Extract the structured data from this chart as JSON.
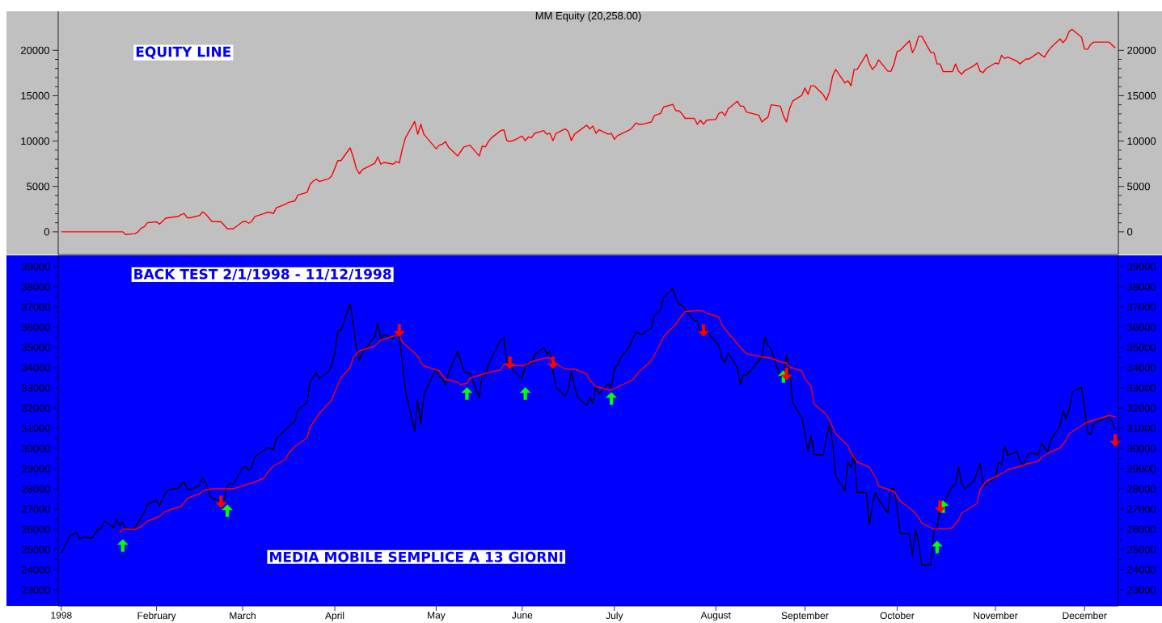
{
  "chart_data": [
    {
      "type": "line",
      "title": "MM Equity (20,258.00)",
      "annotations": [
        "EQUITY LINE"
      ],
      "tick_labels": "y",
      "xlim": [
        "1998-01-01",
        "1998-12-12"
      ],
      "ylim": [
        -2500,
        24300
      ],
      "yticks": [
        0,
        5000,
        10000,
        15000,
        20000
      ],
      "y2lim": [
        -2500,
        24300
      ],
      "y2ticks": [
        0,
        5000,
        10000,
        15000,
        20000
      ],
      "series": [
        {
          "color": "#ff0000",
          "x": [
            "1998-01-02",
            "1998-01-22",
            "1998-01-23",
            "1998-01-26",
            "1998-01-27",
            "1998-01-28",
            "1998-01-29",
            "1998-01-30",
            "1998-02-02",
            "1998-02-03",
            "1998-02-05",
            "1998-02-09",
            "1998-02-10",
            "1998-02-11",
            "1998-02-12",
            "1998-02-13",
            "1998-02-16",
            "1998-02-17",
            "1998-02-18",
            "1998-02-19",
            "1998-02-20",
            "1998-02-23",
            "1998-02-25",
            "1998-02-27",
            "1998-03-02",
            "1998-03-03",
            "1998-03-04",
            "1998-03-05",
            "1998-03-06",
            "1998-03-09",
            "1998-03-10",
            "1998-03-11",
            "1998-03-12",
            "1998-03-13",
            "1998-03-16",
            "1998-03-17",
            "1998-03-19",
            "1998-03-20",
            "1998-03-23",
            "1998-03-24",
            "1998-03-25",
            "1998-03-26",
            "1998-03-27",
            "1998-03-30",
            "1998-03-31",
            "1998-04-02",
            "1998-04-03",
            "1998-04-06",
            "1998-04-07",
            "1998-04-08",
            "1998-04-09",
            "1998-04-10",
            "1998-04-14",
            "1998-04-15",
            "1998-04-16",
            "1998-04-17",
            "1998-04-20",
            "1998-04-21",
            "1998-04-22",
            "1998-04-23",
            "1998-04-24",
            "1998-04-27",
            "1998-04-28",
            "1998-04-29",
            "1998-04-30",
            "1998-05-04",
            "1998-05-05",
            "1998-05-06",
            "1998-05-07",
            "1998-05-08",
            "1998-05-11",
            "1998-05-12",
            "1998-05-13",
            "1998-05-15",
            "1998-05-18",
            "1998-05-19",
            "1998-05-20",
            "1998-05-21",
            "1998-05-22",
            "1998-05-25",
            "1998-05-26",
            "1998-05-27",
            "1998-05-28",
            "1998-05-29",
            "1998-06-01",
            "1998-06-02",
            "1998-06-03",
            "1998-06-04",
            "1998-06-05",
            "1998-06-08",
            "1998-06-09",
            "1998-06-10",
            "1998-06-11",
            "1998-06-12",
            "1998-06-15",
            "1998-06-16",
            "1998-06-17",
            "1998-06-18",
            "1998-06-22",
            "1998-06-23",
            "1998-06-24",
            "1998-06-25",
            "1998-06-26",
            "1998-06-29",
            "1998-06-30",
            "1998-07-01",
            "1998-07-02",
            "1998-07-06",
            "1998-07-07",
            "1998-07-08",
            "1998-07-09",
            "1998-07-10",
            "1998-07-13",
            "1998-07-14",
            "1998-07-16",
            "1998-07-17",
            "1998-07-20",
            "1998-07-21",
            "1998-07-22",
            "1998-07-23",
            "1998-07-24",
            "1998-07-27",
            "1998-07-28",
            "1998-07-29",
            "1998-07-30",
            "1998-07-31",
            "1998-08-03",
            "1998-08-04",
            "1998-08-05",
            "1998-08-06",
            "1998-08-07",
            "1998-08-10",
            "1998-08-11",
            "1998-08-12",
            "1998-08-13",
            "1998-08-17",
            "1998-08-18",
            "1998-08-19",
            "1998-08-20",
            "1998-08-21",
            "1998-08-24",
            "1998-08-25",
            "1998-08-26",
            "1998-08-27",
            "1998-08-28",
            "1998-08-31",
            "1998-09-01",
            "1998-09-02",
            "1998-09-03",
            "1998-09-04",
            "1998-09-07",
            "1998-09-08",
            "1998-09-09",
            "1998-09-10",
            "1998-09-11",
            "1998-09-14",
            "1998-09-15",
            "1998-09-16",
            "1998-09-17",
            "1998-09-18",
            "1998-09-21",
            "1998-09-22",
            "1998-09-23",
            "1998-09-24",
            "1998-09-25",
            "1998-09-28",
            "1998-09-29",
            "1998-09-30",
            "1998-10-01",
            "1998-10-02",
            "1998-10-05",
            "1998-10-06",
            "1998-10-07",
            "1998-10-08",
            "1998-10-09",
            "1998-10-12",
            "1998-10-13",
            "1998-10-14",
            "1998-10-15",
            "1998-10-16",
            "1998-10-19",
            "1998-10-20",
            "1998-10-21",
            "1998-10-22",
            "1998-10-23",
            "1998-10-26",
            "1998-10-27",
            "1998-10-28",
            "1998-10-29",
            "1998-10-30",
            "1998-11-02",
            "1998-11-03",
            "1998-11-04",
            "1998-11-05",
            "1998-11-06",
            "1998-11-09",
            "1998-11-10",
            "1998-11-11",
            "1998-11-12",
            "1998-11-13",
            "1998-11-16",
            "1998-11-17",
            "1998-11-18",
            "1998-11-19",
            "1998-11-20",
            "1998-11-23",
            "1998-11-24",
            "1998-11-25",
            "1998-11-26",
            "1998-11-27",
            "1998-11-30",
            "1998-12-01",
            "1998-12-02",
            "1998-12-03",
            "1998-12-04",
            "1998-12-07",
            "1998-12-09",
            "1998-12-11"
          ],
          "values": [
            0,
            0,
            -300,
            -200,
            0,
            400,
            550,
            1000,
            1100,
            850,
            1500,
            1700,
            1900,
            2000,
            1550,
            1550,
            1800,
            2200,
            1950,
            1550,
            1150,
            1100,
            350,
            350,
            1100,
            1150,
            950,
            1150,
            1700,
            2000,
            2150,
            2150,
            2000,
            2650,
            3050,
            3250,
            3400,
            4050,
            4350,
            5250,
            5600,
            5800,
            5550,
            5850,
            6150,
            7850,
            7850,
            9250,
            8250,
            7000,
            6400,
            6850,
            7550,
            8250,
            7450,
            7650,
            7450,
            7750,
            7600,
            9150,
            10350,
            12150,
            10750,
            11850,
            10750,
            9150,
            9550,
            9650,
            9950,
            9350,
            8350,
            8850,
            9350,
            9550,
            8350,
            9450,
            9350,
            9950,
            10350,
            11150,
            11250,
            10050,
            9950,
            10050,
            10550,
            10050,
            10450,
            10350,
            10850,
            11150,
            10750,
            10850,
            10050,
            10850,
            11350,
            11050,
            10050,
            10750,
            11750,
            11350,
            11650,
            10850,
            11250,
            10750,
            10850,
            10200,
            10600,
            11250,
            11550,
            12000,
            11850,
            11850,
            12100,
            12800,
            13050,
            13750,
            14050,
            13350,
            13350,
            13000,
            12500,
            12500,
            11850,
            12300,
            11850,
            12300,
            12400,
            13050,
            13200,
            12800,
            13550,
            14400,
            13850,
            13850,
            13200,
            12850,
            12100,
            12400,
            12650,
            14000,
            13850,
            12800,
            12100,
            13550,
            14400,
            15050,
            15850,
            15150,
            16100,
            16100,
            15100,
            14500,
            15450,
            17150,
            17900,
            16400,
            16650,
            16100,
            17900,
            17900,
            19550,
            18500,
            17900,
            18300,
            18950,
            17700,
            17700,
            18500,
            19850,
            20000,
            21050,
            19750,
            20400,
            21550,
            21550,
            19750,
            19750,
            18500,
            18500,
            17650,
            17650,
            18500,
            17700,
            17350,
            17750,
            18300,
            18600,
            17700,
            17550,
            18000,
            18600,
            18500,
            19450,
            19100,
            19250,
            18800,
            18500,
            18800,
            19050,
            19050,
            19750,
            19450,
            19250,
            19850,
            20300,
            21250,
            20850,
            21250,
            22100,
            22300,
            21450,
            20150,
            20100,
            20650,
            20900,
            20900,
            20900,
            20258
          ]
        }
      ]
    },
    {
      "type": "line",
      "annotations": [
        "BACK TEST 2/1/1998 - 11/12/1998",
        "MEDIA MOBILE SEMPLICE A 13 GIORNI"
      ],
      "xlim": [
        "1998-01-01",
        "1998-12-12"
      ],
      "ylim": [
        22200,
        39560
      ],
      "yticks": [
        23000,
        24000,
        25000,
        26000,
        27000,
        28000,
        29000,
        30000,
        31000,
        32000,
        33000,
        34000,
        35000,
        36000,
        37000,
        38000,
        39000
      ],
      "y2lim": [
        22200,
        39560
      ],
      "y2ticks": [
        23000,
        24000,
        25000,
        26000,
        27000,
        28000,
        29000,
        30000,
        31000,
        32000,
        33000,
        34000,
        35000,
        36000,
        37000,
        38000,
        39000
      ],
      "xticks": [
        {
          "value": "1998-01-02",
          "label": "1998"
        },
        {
          "value": "1998-02-02",
          "label": "February"
        },
        {
          "value": "1998-03-02",
          "label": "March"
        },
        {
          "value": "1998-04-01",
          "label": "April"
        },
        {
          "value": "1998-05-04",
          "label": "May"
        },
        {
          "value": "1998-06-01",
          "label": "June"
        },
        {
          "value": "1998-07-01",
          "label": "July"
        },
        {
          "value": "1998-08-03",
          "label": "August"
        },
        {
          "value": "1998-09-01",
          "label": "September"
        },
        {
          "value": "1998-10-01",
          "label": "October"
        },
        {
          "value": "1998-11-02",
          "label": "November"
        },
        {
          "value": "1998-12-01",
          "label": "December"
        }
      ],
      "series": [
        {
          "color": "#000000",
          "x": [
            "1998-01-02",
            "1998-01-05",
            "1998-01-07",
            "1998-01-08",
            "1998-01-09",
            "1998-01-12",
            "1998-01-14",
            "1998-01-15",
            "1998-01-16",
            "1998-01-19",
            "1998-01-20",
            "1998-01-21",
            "1998-01-22",
            "1998-01-23",
            "1998-01-26",
            "1998-01-28",
            "1998-01-29",
            "1998-01-30",
            "1998-02-02",
            "1998-02-03",
            "1998-02-04",
            "1998-02-05",
            "1998-02-06",
            "1998-02-09",
            "1998-02-10",
            "1998-02-11",
            "1998-02-12",
            "1998-02-13",
            "1998-02-16",
            "1998-02-17",
            "1998-02-18",
            "1998-02-19",
            "1998-02-20",
            "1998-02-23",
            "1998-02-24",
            "1998-02-25",
            "1998-02-26",
            "1998-02-27",
            "1998-03-02",
            "1998-03-03",
            "1998-03-04",
            "1998-03-05",
            "1998-03-06",
            "1998-03-09",
            "1998-03-10",
            "1998-03-12",
            "1998-03-13",
            "1998-03-16",
            "1998-03-17",
            "1998-03-18",
            "1998-03-19",
            "1998-03-20",
            "1998-03-23",
            "1998-03-24",
            "1998-03-25",
            "1998-03-26",
            "1998-03-27",
            "1998-03-30",
            "1998-03-31",
            "1998-04-01",
            "1998-04-02",
            "1998-04-03",
            "1998-04-06",
            "1998-04-07",
            "1998-04-08",
            "1998-04-09",
            "1998-04-10",
            "1998-04-14",
            "1998-04-15",
            "1998-04-16",
            "1998-04-17",
            "1998-04-20",
            "1998-04-21",
            "1998-04-22",
            "1998-04-23",
            "1998-04-24",
            "1998-04-27",
            "1998-04-28",
            "1998-04-29",
            "1998-04-30",
            "1998-05-04",
            "1998-05-05",
            "1998-05-06",
            "1998-05-07",
            "1998-05-08",
            "1998-05-11",
            "1998-05-12",
            "1998-05-13",
            "1998-05-14",
            "1998-05-15",
            "1998-05-18",
            "1998-05-19",
            "1998-05-20",
            "1998-05-21",
            "1998-05-22",
            "1998-05-25",
            "1998-05-26",
            "1998-05-27",
            "1998-05-28",
            "1998-05-29",
            "1998-06-01",
            "1998-06-02",
            "1998-06-03",
            "1998-06-04",
            "1998-06-05",
            "1998-06-08",
            "1998-06-09",
            "1998-06-10",
            "1998-06-11",
            "1998-06-12",
            "1998-06-15",
            "1998-06-16",
            "1998-06-17",
            "1998-06-18",
            "1998-06-19",
            "1998-06-22",
            "1998-06-23",
            "1998-06-24",
            "1998-06-25",
            "1998-06-26",
            "1998-06-29",
            "1998-06-30",
            "1998-07-01",
            "1998-07-02",
            "1998-07-03",
            "1998-07-06",
            "1998-07-07",
            "1998-07-08",
            "1998-07-09",
            "1998-07-10",
            "1998-07-13",
            "1998-07-14",
            "1998-07-15",
            "1998-07-16",
            "1998-07-17",
            "1998-07-20",
            "1998-07-21",
            "1998-07-22",
            "1998-07-23",
            "1998-07-24",
            "1998-07-27",
            "1998-07-28",
            "1998-07-29",
            "1998-07-30",
            "1998-07-31",
            "1998-08-03",
            "1998-08-04",
            "1998-08-05",
            "1998-08-06",
            "1998-08-07",
            "1998-08-10",
            "1998-08-11",
            "1998-08-12",
            "1998-08-13",
            "1998-08-17",
            "1998-08-18",
            "1998-08-19",
            "1998-08-20",
            "1998-08-21",
            "1998-08-24",
            "1998-08-25",
            "1998-08-26",
            "1998-08-27",
            "1998-08-28",
            "1998-08-31",
            "1998-09-01",
            "1998-09-02",
            "1998-09-03",
            "1998-09-04",
            "1998-09-07",
            "1998-09-08",
            "1998-09-09",
            "1998-09-10",
            "1998-09-11",
            "1998-09-14",
            "1998-09-15",
            "1998-09-16",
            "1998-09-17",
            "1998-09-18",
            "1998-09-21",
            "1998-09-22",
            "1998-09-23",
            "1998-09-24",
            "1998-09-25",
            "1998-09-28",
            "1998-09-29",
            "1998-09-30",
            "1998-10-01",
            "1998-10-02",
            "1998-10-05",
            "1998-10-06",
            "1998-10-07",
            "1998-10-08",
            "1998-10-09",
            "1998-10-12",
            "1998-10-13",
            "1998-10-14",
            "1998-10-15",
            "1998-10-16",
            "1998-10-19",
            "1998-10-20",
            "1998-10-21",
            "1998-10-22",
            "1998-10-23",
            "1998-10-26",
            "1998-10-27",
            "1998-10-28",
            "1998-10-29",
            "1998-10-30",
            "1998-11-02",
            "1998-11-03",
            "1998-11-04",
            "1998-11-05",
            "1998-11-06",
            "1998-11-09",
            "1998-11-10",
            "1998-11-11",
            "1998-11-12",
            "1998-11-13",
            "1998-11-16",
            "1998-11-17",
            "1998-11-18",
            "1998-11-19",
            "1998-11-20",
            "1998-11-23",
            "1998-11-24",
            "1998-11-25",
            "1998-11-26",
            "1998-11-27",
            "1998-11-30",
            "1998-12-01",
            "1998-12-02",
            "1998-12-03",
            "1998-12-04",
            "1998-12-07",
            "1998-12-09",
            "1998-12-10",
            "1998-12-11"
          ],
          "values": [
            24830,
            25700,
            25830,
            25510,
            25600,
            25560,
            26000,
            26030,
            26400,
            26100,
            26500,
            26180,
            26340,
            26000,
            26070,
            26600,
            26830,
            27230,
            27430,
            27160,
            27530,
            27800,
            27960,
            28030,
            28230,
            28360,
            28000,
            27960,
            28170,
            28560,
            28290,
            27870,
            27530,
            27400,
            27430,
            28170,
            28270,
            28230,
            29030,
            29110,
            28900,
            29070,
            29600,
            29910,
            30070,
            29930,
            30490,
            30930,
            31090,
            31200,
            31310,
            31930,
            32270,
            33270,
            33560,
            33730,
            33470,
            33800,
            34130,
            34730,
            35830,
            35830,
            37160,
            36200,
            34960,
            34360,
            34760,
            35530,
            36200,
            35400,
            35630,
            35430,
            35670,
            35500,
            34270,
            32870,
            30870,
            32400,
            31200,
            32670,
            33970,
            33560,
            33470,
            33110,
            33730,
            34830,
            34330,
            33840,
            33710,
            33730,
            32530,
            33670,
            33600,
            34130,
            34490,
            35360,
            35490,
            34270,
            34200,
            33870,
            33470,
            34070,
            34290,
            34130,
            34640,
            35000,
            34670,
            34800,
            33830,
            33030,
            32600,
            32890,
            33830,
            33070,
            32530,
            32130,
            32530,
            32230,
            33100,
            32700,
            33200,
            33000,
            33930,
            34130,
            34470,
            35070,
            35430,
            35760,
            35690,
            35640,
            35960,
            36600,
            36710,
            36830,
            37470,
            37910,
            37470,
            37130,
            37130,
            36870,
            36330,
            36330,
            35670,
            36110,
            35800,
            35270,
            35110,
            34430,
            34270,
            34730,
            34000,
            33160,
            33630,
            33630,
            34330,
            34560,
            35490,
            35090,
            34930,
            33530,
            33600,
            34630,
            33930,
            32270,
            31530,
            30730,
            29870,
            30640,
            29700,
            29670,
            30540,
            31200,
            30300,
            28630,
            27900,
            29310,
            29070,
            29670,
            27830,
            27800,
            26230,
            27270,
            27830,
            27470,
            26800,
            28000,
            28000,
            27070,
            25800,
            25770,
            24670,
            25980,
            25400,
            24230,
            24230,
            25960,
            26070,
            27070,
            27270,
            28130,
            28230,
            29070,
            28300,
            28000,
            28380,
            28830,
            29270,
            28270,
            28200,
            28560,
            29300,
            29200,
            30140,
            29670,
            29830,
            29400,
            29160,
            29530,
            29780,
            29710,
            30270,
            30030,
            29830,
            30400,
            31110,
            31870,
            31470,
            31900,
            32800,
            33030,
            32030,
            30800,
            30670,
            31270,
            31440,
            31530,
            31330,
            30930
          ]
        },
        {
          "color": "#ff0000",
          "x": [
            "1998-01-21",
            "1998-01-22",
            "1998-01-26",
            "1998-01-28",
            "1998-01-30",
            "1998-02-03",
            "1998-02-05",
            "1998-02-10",
            "1998-02-12",
            "1998-02-16",
            "1998-02-17",
            "1998-02-20",
            "1998-02-24",
            "1998-02-27",
            "1998-03-03",
            "1998-03-05",
            "1998-03-09",
            "1998-03-10",
            "1998-03-12",
            "1998-03-16",
            "1998-03-17",
            "1998-03-19",
            "1998-03-23",
            "1998-03-24",
            "1998-03-27",
            "1998-03-31",
            "1998-04-01",
            "1998-04-03",
            "1998-04-06",
            "1998-04-07",
            "1998-04-09",
            "1998-04-14",
            "1998-04-16",
            "1998-04-20",
            "1998-04-22",
            "1998-04-23",
            "1998-04-27",
            "1998-04-28",
            "1998-04-29",
            "1998-04-30",
            "1998-05-05",
            "1998-05-07",
            "1998-05-11",
            "1998-05-12",
            "1998-05-14",
            "1998-05-15",
            "1998-05-19",
            "1998-05-21",
            "1998-05-25",
            "1998-05-26",
            "1998-05-28",
            "1998-06-01",
            "1998-06-02",
            "1998-06-04",
            "1998-06-08",
            "1998-06-10",
            "1998-06-12",
            "1998-06-15",
            "1998-06-18",
            "1998-06-22",
            "1998-06-23",
            "1998-06-25",
            "1998-06-30",
            "1998-07-02",
            "1998-07-07",
            "1998-07-09",
            "1998-07-13",
            "1998-07-15",
            "1998-07-17",
            "1998-07-21",
            "1998-07-23",
            "1998-07-24",
            "1998-07-28",
            "1998-07-30",
            "1998-07-31",
            "1998-08-04",
            "1998-08-05",
            "1998-08-07",
            "1998-08-11",
            "1998-08-13",
            "1998-08-18",
            "1998-08-21",
            "1998-08-24",
            "1998-08-26",
            "1998-08-27",
            "1998-08-31",
            "1998-09-01",
            "1998-09-03",
            "1998-09-04",
            "1998-09-08",
            "1998-09-09",
            "1998-09-11",
            "1998-09-15",
            "1998-09-16",
            "1998-09-18",
            "1998-09-22",
            "1998-09-24",
            "1998-09-25",
            "1998-09-29",
            "1998-09-30",
            "1998-10-02",
            "1998-10-06",
            "1998-10-08",
            "1998-10-09",
            "1998-10-13",
            "1998-10-15",
            "1998-10-16",
            "1998-10-19",
            "1998-10-21",
            "1998-10-22",
            "1998-10-27",
            "1998-10-28",
            "1998-10-30",
            "1998-11-03",
            "1998-11-05",
            "1998-11-06",
            "1998-11-10",
            "1998-11-12",
            "1998-11-16",
            "1998-11-17",
            "1998-11-19",
            "1998-11-23",
            "1998-11-25",
            "1998-11-26",
            "1998-11-30",
            "1998-12-01",
            "1998-12-03",
            "1998-12-07",
            "1998-12-09",
            "1998-12-11"
          ],
          "values": [
            25830,
            26000,
            26000,
            26130,
            26400,
            26640,
            26900,
            27130,
            27530,
            27760,
            27910,
            28000,
            28000,
            28000,
            28200,
            28290,
            28530,
            28800,
            29130,
            29470,
            29760,
            30090,
            30530,
            31070,
            31730,
            32400,
            32800,
            33490,
            34000,
            34510,
            34830,
            35070,
            35360,
            35560,
            35640,
            35250,
            34730,
            34560,
            34270,
            34090,
            33840,
            33430,
            33270,
            33160,
            33230,
            33470,
            33670,
            33760,
            33890,
            34160,
            34130,
            34090,
            34130,
            34290,
            34470,
            34490,
            34200,
            33930,
            33930,
            33690,
            33360,
            33070,
            32870,
            33030,
            33400,
            33800,
            34330,
            34900,
            35530,
            36160,
            36600,
            36770,
            36830,
            36800,
            36690,
            36510,
            36110,
            35730,
            35000,
            34690,
            34530,
            34470,
            34290,
            34230,
            34030,
            33840,
            33440,
            33070,
            32200,
            31670,
            31400,
            30730,
            30140,
            29760,
            29330,
            29070,
            28560,
            28130,
            27930,
            27870,
            27400,
            26940,
            26600,
            26300,
            26000,
            26040,
            26000,
            26070,
            26470,
            26800,
            27270,
            27960,
            28380,
            28670,
            28830,
            28960,
            29100,
            29230,
            29360,
            29570,
            29760,
            30030,
            30400,
            30730,
            31130,
            31230,
            31360,
            31530,
            31640,
            31560
          ]
        },
        {
          "type": "scatter",
          "color": "#00ff00",
          "marker": "triangle",
          "x": [
            "1998-01-22",
            "1998-02-25",
            "1998-05-14",
            "1998-06-02",
            "1998-06-30",
            "1998-08-25",
            "1998-10-14",
            "1998-10-16"
          ],
          "values": [
            25200,
            26920,
            32720,
            32720,
            32480,
            33560,
            25120,
            27120
          ]
        },
        {
          "type": "scatter",
          "color": "#ff0000",
          "marker": "triangle",
          "x": [
            "1998-02-23",
            "1998-04-22",
            "1998-05-28",
            "1998-06-11",
            "1998-07-30",
            "1998-08-26",
            "1998-10-15",
            "1998-12-11"
          ],
          "values": [
            27360,
            35840,
            34240,
            34240,
            35840,
            33680,
            27120,
            30400
          ]
        }
      ]
    }
  ]
}
